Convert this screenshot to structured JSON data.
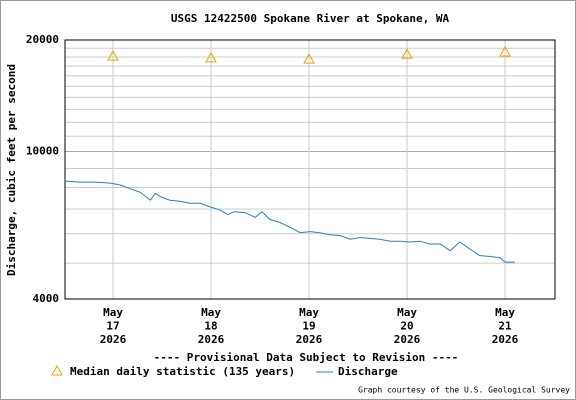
{
  "chart_data": {
    "type": "line",
    "title": "USGS 12422500 Spokane River at Spokane, WA",
    "y_label": "Discharge, cubic feet per second",
    "annotation": "---- Provisional Data Subject to Revision ----",
    "annotation_color": "#e00000",
    "credit": "Graph courtesy of the U.S. Geological Survey",
    "log_y": true,
    "grid": true,
    "xlim": [
      16.51,
      21.51
    ],
    "xticks": [
      {
        "value": 17,
        "label": [
          "May",
          "17",
          "2026"
        ]
      },
      {
        "value": 18,
        "label": [
          "May",
          "18",
          "2026"
        ]
      },
      {
        "value": 19,
        "label": [
          "May",
          "19",
          "2026"
        ]
      },
      {
        "value": 20,
        "label": [
          "May",
          "20",
          "2026"
        ]
      },
      {
        "value": 21,
        "label": [
          "May",
          "21",
          "2026"
        ]
      }
    ],
    "ylim": [
      4000,
      20000
    ],
    "yticks": [
      4000,
      10000,
      20000
    ],
    "minor_yticks": [
      5000,
      6000,
      7000,
      8000,
      9000,
      11000,
      12000,
      13000,
      14000,
      15000,
      16000,
      17000,
      18000,
      19000
    ],
    "series": [
      {
        "name": "Median daily statistic (135 years)",
        "color": "#f0a000",
        "marker": "triangle",
        "x": [
          17,
          18,
          19,
          20,
          21
        ],
        "values": [
          18100,
          17900,
          17760,
          18300,
          18560
        ]
      },
      {
        "name": "Discharge",
        "color": "#2a7fbf",
        "marker": "line",
        "x": [
          16.51,
          16.66,
          16.82,
          16.97,
          17.07,
          17.17,
          17.28,
          17.38,
          17.43,
          17.5,
          17.58,
          17.68,
          17.79,
          17.89,
          17.99,
          18.09,
          18.17,
          18.24,
          18.35,
          18.45,
          18.52,
          18.6,
          18.7,
          18.81,
          18.91,
          19.01,
          19.11,
          19.21,
          19.32,
          19.42,
          19.52,
          19.62,
          19.72,
          19.83,
          19.93,
          20.03,
          20.13,
          20.23,
          20.34,
          20.44,
          20.54,
          20.64,
          20.74,
          20.85,
          20.95,
          21.0,
          21.1
        ],
        "values": [
          8320,
          8270,
          8270,
          8220,
          8130,
          7950,
          7760,
          7390,
          7710,
          7520,
          7390,
          7340,
          7250,
          7250,
          7090,
          6960,
          6760,
          6880,
          6840,
          6640,
          6880,
          6560,
          6440,
          6240,
          6040,
          6080,
          6040,
          5960,
          5930,
          5800,
          5860,
          5830,
          5800,
          5730,
          5730,
          5700,
          5730,
          5630,
          5630,
          5400,
          5700,
          5460,
          5240,
          5210,
          5170,
          5030,
          5030
        ]
      }
    ]
  }
}
